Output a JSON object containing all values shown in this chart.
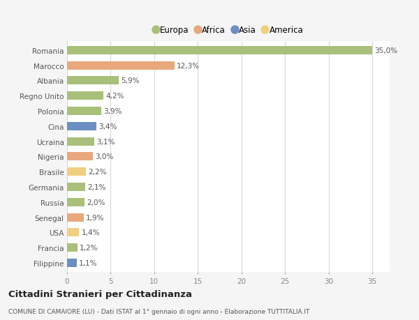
{
  "countries": [
    "Romania",
    "Marocco",
    "Albania",
    "Regno Unito",
    "Polonia",
    "Cina",
    "Ucraina",
    "Nigeria",
    "Brasile",
    "Germania",
    "Russia",
    "Senegal",
    "USA",
    "Francia",
    "Filippine"
  ],
  "values": [
    35.0,
    12.3,
    5.9,
    4.2,
    3.9,
    3.4,
    3.1,
    3.0,
    2.2,
    2.1,
    2.0,
    1.9,
    1.4,
    1.2,
    1.1
  ],
  "labels": [
    "35,0%",
    "12,3%",
    "5,9%",
    "4,2%",
    "3,9%",
    "3,4%",
    "3,1%",
    "3,0%",
    "2,2%",
    "2,1%",
    "2,0%",
    "1,9%",
    "1,4%",
    "1,2%",
    "1,1%"
  ],
  "colors": [
    "#a8c07a",
    "#e8a87c",
    "#a8c07a",
    "#a8c07a",
    "#a8c07a",
    "#6b8fc2",
    "#a8c07a",
    "#e8a87c",
    "#f0d080",
    "#a8c07a",
    "#a8c07a",
    "#e8a87c",
    "#f0d080",
    "#a8c07a",
    "#6b8fc2"
  ],
  "legend_labels": [
    "Europa",
    "Africa",
    "Asia",
    "America"
  ],
  "legend_colors": [
    "#a8c07a",
    "#e8a87c",
    "#6b8fc2",
    "#f0d080"
  ],
  "xlim": [
    0,
    37
  ],
  "xticks": [
    0,
    5,
    10,
    15,
    20,
    25,
    30,
    35
  ],
  "title": "Cittadini Stranieri per Cittadinanza",
  "subtitle": "COMUNE DI CAMAIORE (LU) - Dati ISTAT al 1° gennaio di ogni anno - Elaborazione TUTTITALIA.IT",
  "bg_color": "#f5f5f5",
  "plot_bg_color": "#ffffff",
  "grid_color": "#d8d8d8",
  "bar_height": 0.55,
  "label_fontsize": 7.5,
  "ytick_fontsize": 7.5,
  "xtick_fontsize": 7.5,
  "legend_fontsize": 8.5,
  "title_fontsize": 9.5,
  "subtitle_fontsize": 6.5
}
